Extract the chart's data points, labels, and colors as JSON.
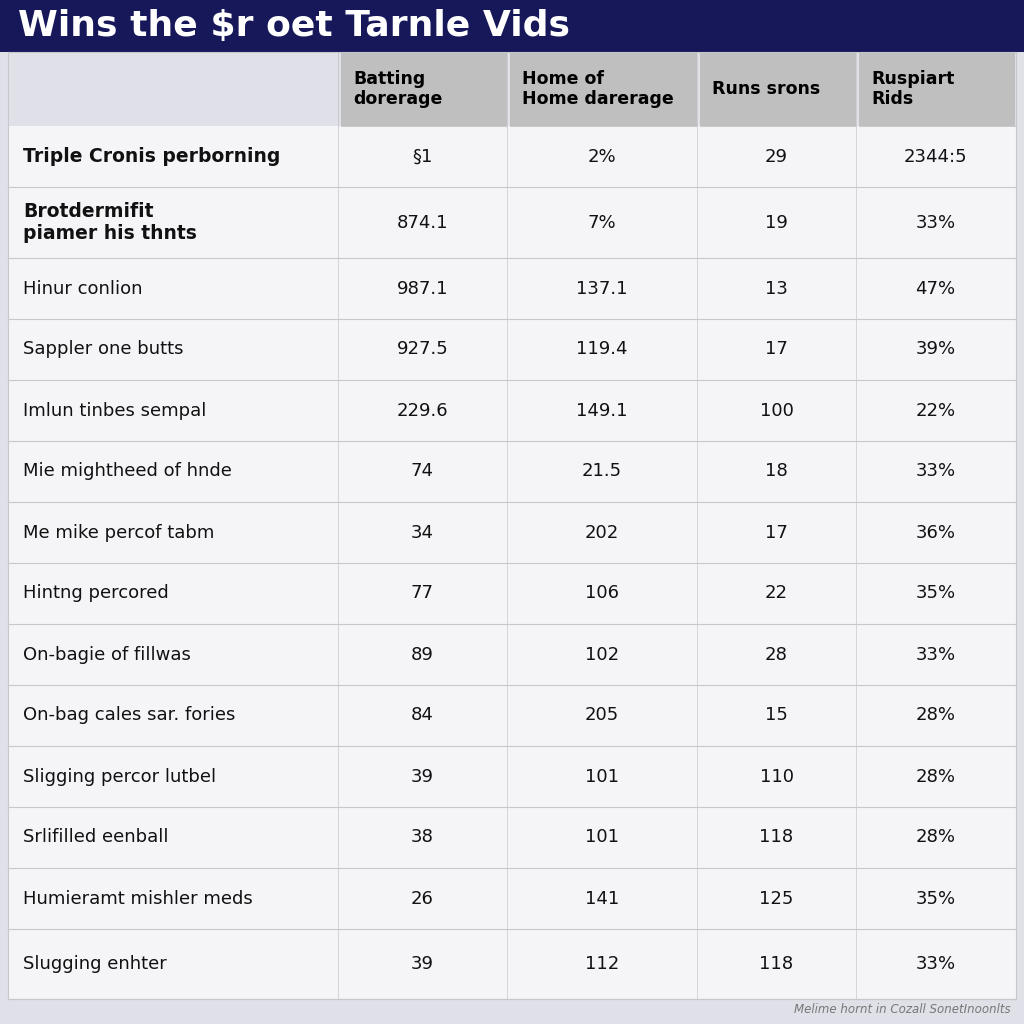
{
  "title": "Wins the $r oet Tarnle Vids",
  "col_headers": [
    "Batting\ndorerage",
    "Home of\nHome darerage",
    "Runs srons",
    "Ruspiart\nRids"
  ],
  "rows": [
    {
      "label": "Triple Cronis perborning",
      "bold": true,
      "values": [
        "§1",
        "2%",
        "29",
        "2344:5"
      ]
    },
    {
      "label": "Brotdermifit\npiamer his thnts",
      "bold": true,
      "values": [
        "874.1",
        "7%",
        "19",
        "33%"
      ]
    },
    {
      "label": "Hinur conlion",
      "bold": false,
      "values": [
        "987.1",
        "137.1",
        "13",
        "47%"
      ]
    },
    {
      "label": "Sappler one butts",
      "bold": false,
      "values": [
        "927.5",
        "119.4",
        "17",
        "39%"
      ]
    },
    {
      "label": "Imlun tinbes sempal",
      "bold": false,
      "values": [
        "229.6",
        "149.1",
        "100",
        "22%"
      ]
    },
    {
      "label": "Mie mightheed of hnde",
      "bold": false,
      "values": [
        "74",
        "21.5",
        "18",
        "33%"
      ]
    },
    {
      "label": "Me mike percof tabm",
      "bold": false,
      "values": [
        "34",
        "202",
        "17",
        "36%"
      ]
    },
    {
      "label": "Hintng percored",
      "bold": false,
      "values": [
        "77",
        "106",
        "22",
        "35%"
      ]
    },
    {
      "label": "On-bagie of fillwas",
      "bold": false,
      "values": [
        "89",
        "102",
        "28",
        "33%"
      ]
    },
    {
      "label": "On-bag cales sar. fories",
      "bold": false,
      "values": [
        "84",
        "205",
        "15",
        "28%"
      ]
    },
    {
      "label": "Sligging percor lutbel",
      "bold": false,
      "values": [
        "39",
        "101",
        "110",
        "28%"
      ]
    },
    {
      "label": "Srlifilled eenball",
      "bold": false,
      "values": [
        "38",
        "101",
        "118",
        "28%"
      ]
    },
    {
      "label": "Humieramt mishler meds",
      "bold": false,
      "values": [
        "26",
        "141",
        "125",
        "35%"
      ]
    },
    {
      "label": "Slugging enhter",
      "bold": false,
      "values": [
        "39",
        "112",
        "118",
        "33%"
      ]
    }
  ],
  "footer": "Melime hornt in Cozall SonetInoonlts",
  "title_bg": "#16185a",
  "title_color": "#ffffff",
  "header_bg": "#c0bfbf",
  "header_color": "#000000",
  "row_bg_light": "#f5f5f8",
  "row_bg_medium": "#eaeaee",
  "body_bg": "#dfe0e8",
  "text_color": "#111111",
  "border_color": "#c8c8cc"
}
